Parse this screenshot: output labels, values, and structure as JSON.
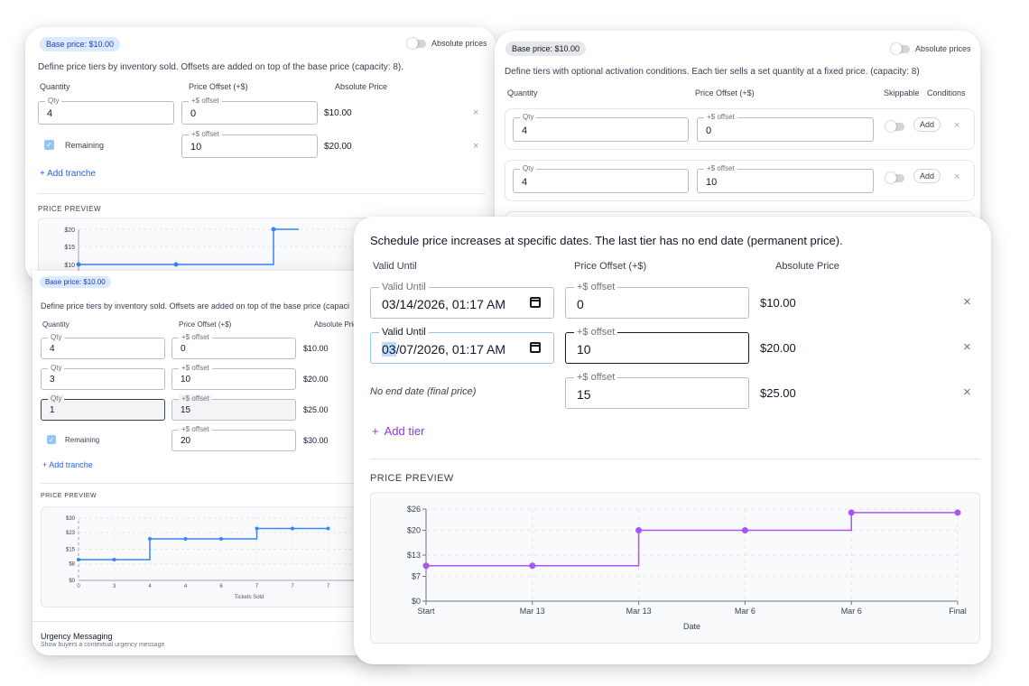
{
  "card_tl": {
    "badge": "Base price: $10.00",
    "toggle_label": "Absolute prices",
    "description": "Define price tiers by inventory sold. Offsets are added on top of the base price (capacity: 8).",
    "headers": [
      "Quantity",
      "Price Offset (+$)",
      "Absolute Price"
    ],
    "qty_label": "Qty",
    "offset_label": "+$ offset",
    "rows": [
      {
        "qty": "4",
        "offset": "0",
        "abs": "$10.00"
      },
      {
        "qty": "Remaining",
        "offset": "10",
        "abs": "$20.00"
      }
    ],
    "add_label": "Add tranche",
    "preview_label": "PRICE PREVIEW",
    "y_ticks": [
      "$20",
      "$15",
      "$10"
    ],
    "remove": "×"
  },
  "card_tr": {
    "badge": "Base price: $10.00",
    "toggle_label": "Absolute prices",
    "description": "Define tiers with optional activation conditions. Each tier sells a set quantity at a fixed price. (capacity: 8)",
    "headers": [
      "Quantity",
      "Price Offset (+$)",
      "Skippable",
      "Conditions"
    ],
    "qty_label": "Qty",
    "offset_label": "+$ offset",
    "rows": [
      {
        "qty": "4",
        "offset": "0"
      },
      {
        "qty": "4",
        "offset": "10"
      }
    ],
    "add_pill": "Add",
    "remove": "×"
  },
  "card_bl": {
    "badge": "Base price: $10.00",
    "description": "Define price tiers by inventory sold. Offsets are added on top of the base price (capaci",
    "headers": [
      "Quantity",
      "Price Offset (+$)",
      "Absolute Price"
    ],
    "qty_label": "Qty",
    "offset_label": "+$ offset",
    "rows": [
      {
        "qty": "4",
        "offset": "0",
        "abs": "$10.00"
      },
      {
        "qty": "3",
        "offset": "10",
        "abs": "$20.00"
      },
      {
        "qty": "1",
        "offset": "15",
        "abs": "$25.00"
      },
      {
        "qty": "Remaining",
        "offset": "20",
        "abs": "$30.00"
      }
    ],
    "add_label": "Add tranche",
    "preview_label": "PRICE PREVIEW",
    "y_ticks": [
      "$30",
      "$23",
      "$15",
      "$8",
      "$0"
    ],
    "x_ticks": [
      "0",
      "3",
      "4",
      "4",
      "6",
      "7",
      "7",
      "7"
    ],
    "x_label": "Tickets Sold",
    "urgency_title": "Urgency Messaging",
    "urgency_sub": "Show buyers a contextual urgency message"
  },
  "card_front": {
    "description": "Schedule price increases at specific dates. The last tier has no end date (permanent price).",
    "headers": [
      "Valid Until",
      "Price Offset (+$)",
      "Absolute Price"
    ],
    "date_label": "Valid Until",
    "offset_label": "+$ offset",
    "rows": [
      {
        "date": "03/14/2026, 01:17 AM",
        "offset": "0",
        "abs": "$10.00"
      },
      {
        "date_hl": "03",
        "date_rest": "/07/2026, 01:17 AM",
        "offset": "10",
        "abs": "$20.00"
      },
      {
        "no_end": "No end date (final price)",
        "offset": "15",
        "abs": "$25.00"
      }
    ],
    "add_label": "Add tier",
    "add_icon": "+",
    "preview_label": "PRICE PREVIEW",
    "remove": "×"
  },
  "chart_data": [
    {
      "type": "line",
      "title": "",
      "y_ticks": [
        "$20",
        "$15",
        "$10"
      ],
      "series": [
        {
          "x": [
            0,
            1,
            2,
            3
          ],
          "values": [
            10,
            10,
            20,
            20
          ]
        }
      ],
      "ylim": [
        10,
        20
      ]
    },
    {
      "type": "line",
      "xlabel": "Tickets Sold",
      "x_ticks": [
        "0",
        "3",
        "4",
        "4",
        "6",
        "7",
        "7",
        "7"
      ],
      "y_ticks": [
        "$30",
        "$23",
        "$15",
        "$8",
        "$0"
      ],
      "series": [
        {
          "values": [
            10,
            10,
            20,
            20,
            20,
            25,
            25,
            25
          ]
        }
      ],
      "ylim": [
        0,
        30
      ]
    },
    {
      "type": "line",
      "xlabel": "Date",
      "categories": [
        "Start",
        "Mar 13",
        "Mar 13",
        "Mar 6",
        "Mar 6",
        "Final"
      ],
      "y_ticks": [
        "$26",
        "$20",
        "$13",
        "$7",
        "$0"
      ],
      "series": [
        {
          "values": [
            10,
            10,
            20,
            20,
            25,
            25
          ]
        }
      ],
      "ylim": [
        0,
        26
      ],
      "color": "#a855f7"
    }
  ]
}
